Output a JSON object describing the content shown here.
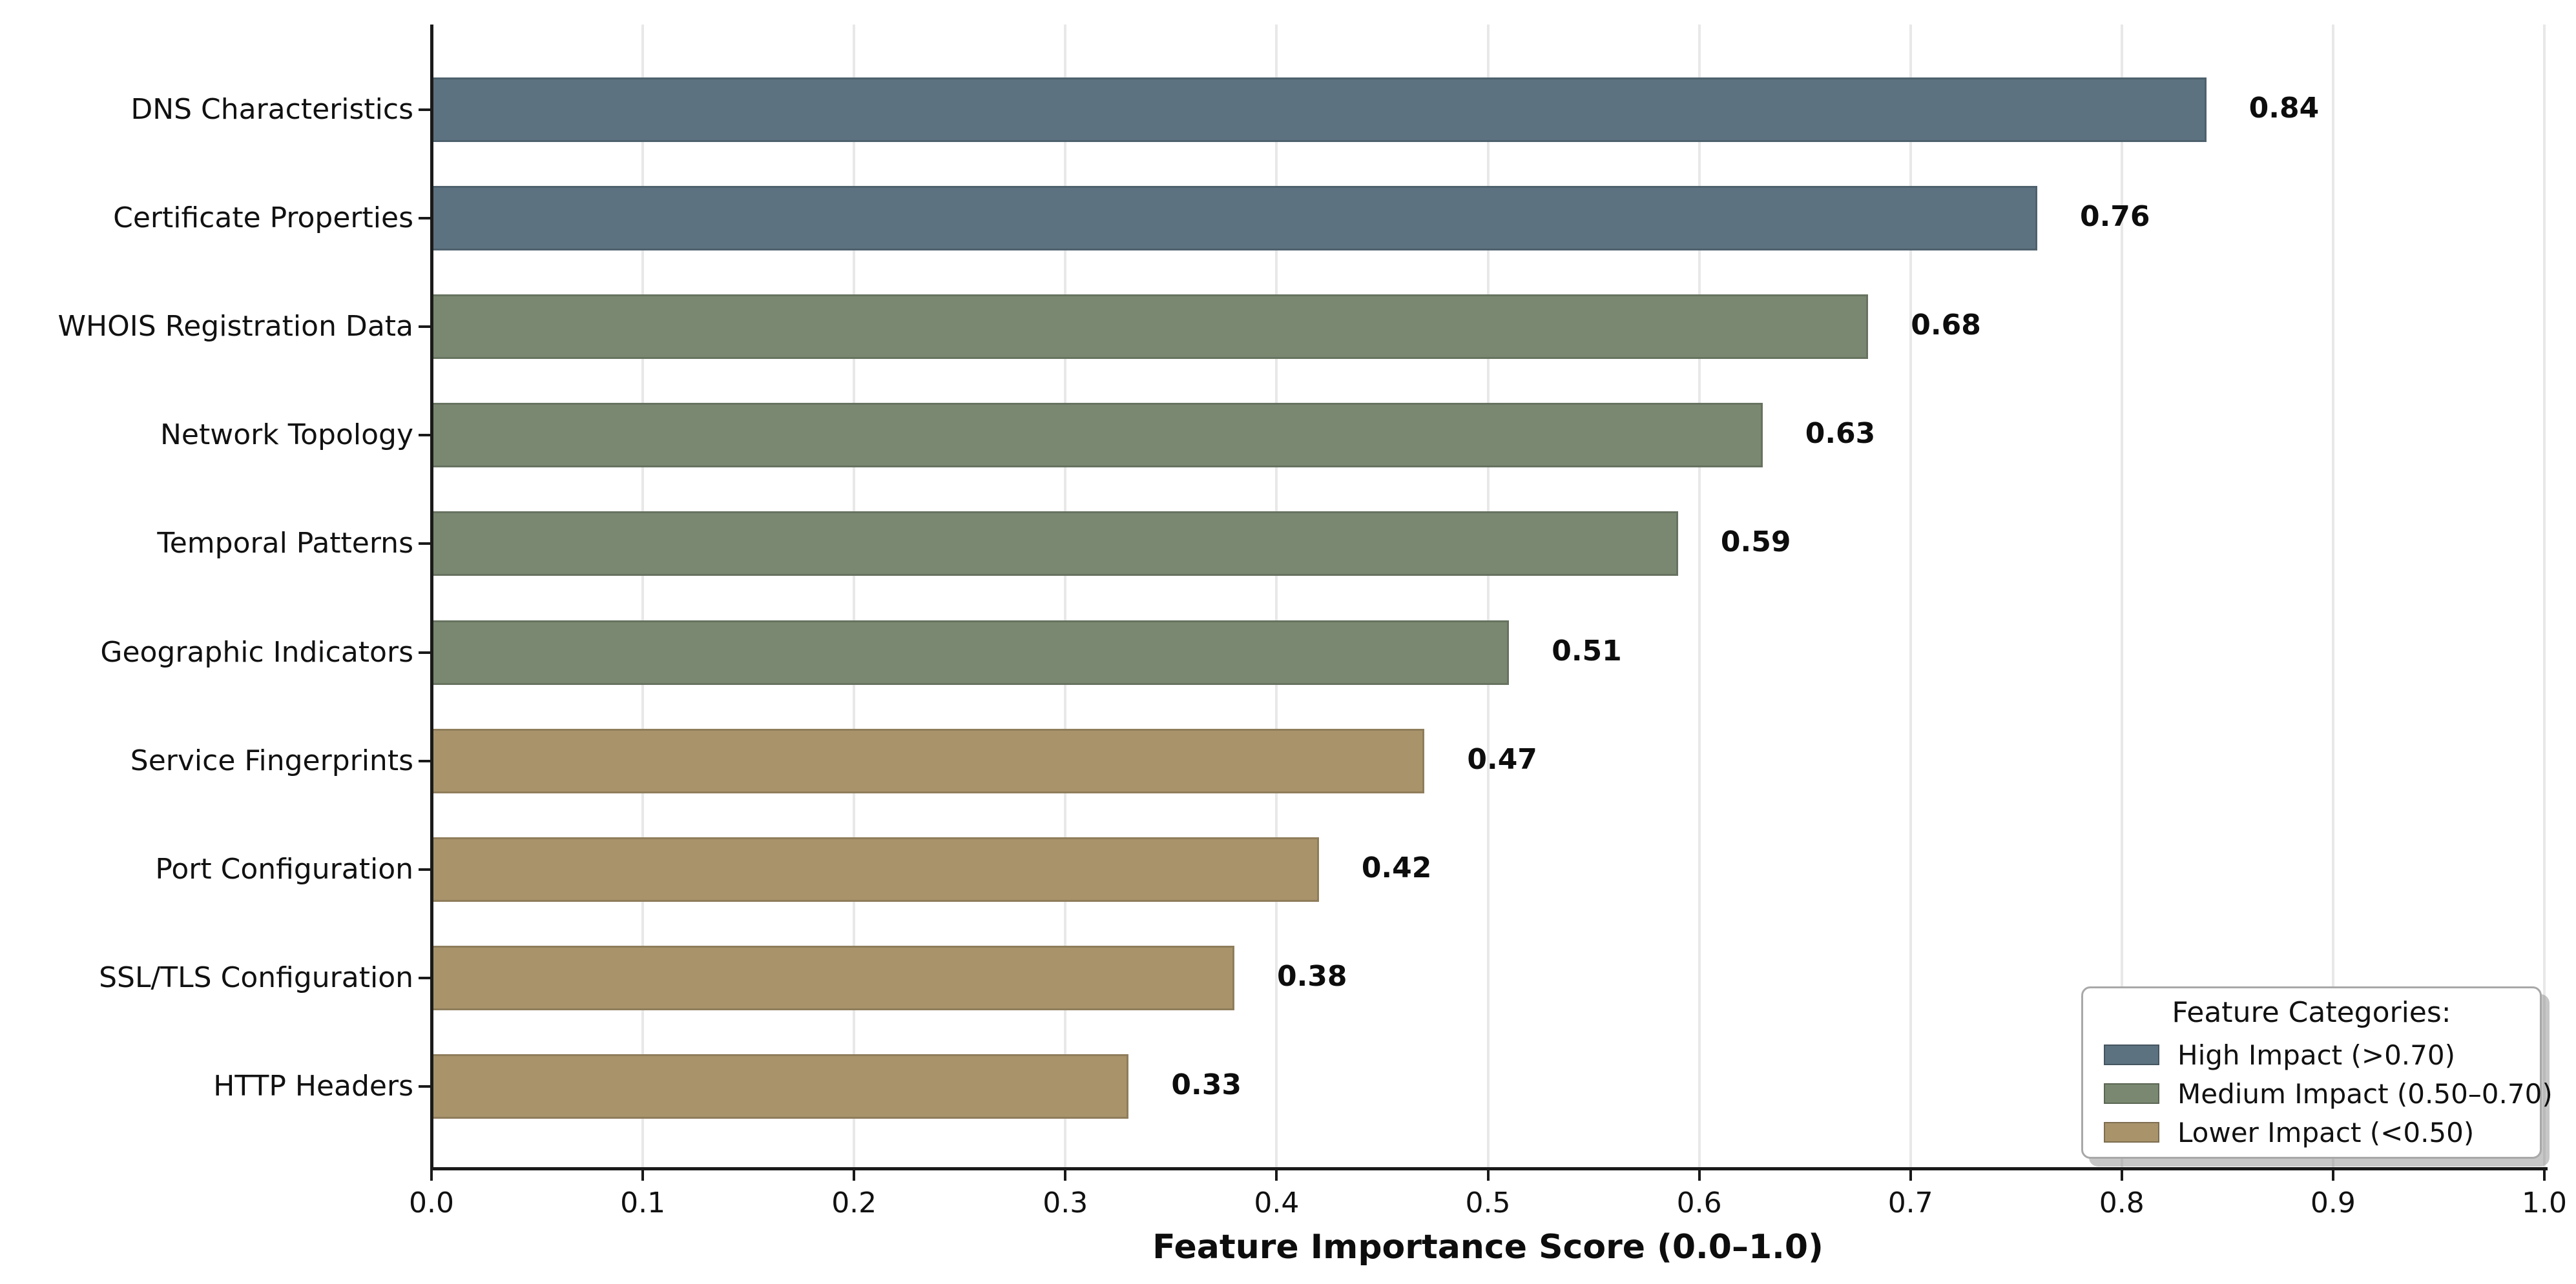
{
  "chart_data": {
    "type": "bar",
    "orientation": "horizontal",
    "title": "",
    "xlabel": "Feature Importance Score (0.0–1.0)",
    "ylabel": "",
    "xlim": [
      0.0,
      1.0
    ],
    "xtick_values": [
      0.0,
      0.1,
      0.2,
      0.3,
      0.4,
      0.5,
      0.6,
      0.7,
      0.8,
      0.9,
      1.0
    ],
    "xtick_labels": [
      "0.0",
      "0.1",
      "0.2",
      "0.3",
      "0.4",
      "0.5",
      "0.6",
      "0.7",
      "0.8",
      "0.9",
      "1.0"
    ],
    "grid": "vertical-light",
    "background_color": "#ffffff",
    "categories": [
      "DNS Characteristics",
      "Certificate Properties",
      "WHOIS Registration Data",
      "Network Topology",
      "Temporal Patterns",
      "Geographic Indicators",
      "Service Fingerprints",
      "Port Configuration",
      "SSL/TLS Configuration",
      "HTTP Headers"
    ],
    "values": [
      0.84,
      0.76,
      0.68,
      0.63,
      0.59,
      0.51,
      0.47,
      0.42,
      0.38,
      0.33
    ],
    "value_labels": [
      "0.84",
      "0.76",
      "0.68",
      "0.63",
      "0.59",
      "0.51",
      "0.47",
      "0.42",
      "0.38",
      "0.33"
    ],
    "groups": [
      "high",
      "high",
      "medium",
      "medium",
      "medium",
      "medium",
      "lower",
      "lower",
      "lower",
      "lower"
    ],
    "group_colors": {
      "high": "#5c7280",
      "medium": "#7a8871",
      "lower": "#a8936b"
    },
    "legend": {
      "title": "Feature Categories:",
      "position": "lower-right",
      "entries": [
        {
          "label": "High Impact (>0.70)",
          "group": "high",
          "color": "#5c7280"
        },
        {
          "label": "Medium Impact (0.50–0.70)",
          "group": "medium",
          "color": "#7a8871"
        },
        {
          "label": "Lower Impact (<0.50)",
          "group": "lower",
          "color": "#a8936b"
        }
      ]
    }
  }
}
